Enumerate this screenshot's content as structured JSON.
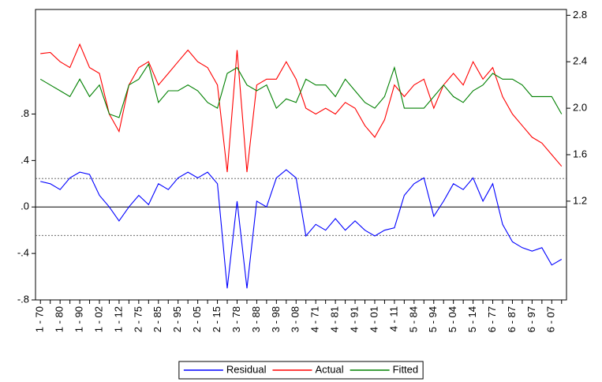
{
  "chart_data": {
    "type": "line",
    "categories": [
      "1 - 70",
      null,
      "1 - 80",
      null,
      "1 - 90",
      null,
      "1 - 02",
      null,
      "1 - 12",
      null,
      "2 - 75",
      null,
      "2 - 85",
      null,
      "2 - 95",
      null,
      "2 - 05",
      null,
      "2 - 15",
      null,
      "3 - 78",
      null,
      "3 - 88",
      null,
      "3 - 98",
      null,
      "3 - 08",
      null,
      "4 - 71",
      null,
      "4 - 81",
      null,
      "4 - 91",
      null,
      "4 - 01",
      null,
      "4 - 11",
      null,
      "5 - 84",
      null,
      "5 - 94",
      null,
      "5 - 04",
      null,
      "5 - 14",
      null,
      "6 - 77",
      null,
      "6 - 87",
      null,
      "6 - 97",
      null,
      "6 - 07",
      null
    ],
    "series": [
      {
        "name": "Residual",
        "color": "#0000ff",
        "axis": "y",
        "values": [
          0.22,
          0.2,
          0.15,
          0.25,
          0.3,
          0.28,
          0.1,
          0.0,
          -0.12,
          0.0,
          0.1,
          0.02,
          0.2,
          0.15,
          0.25,
          0.3,
          0.25,
          0.3,
          0.2,
          -0.7,
          0.05,
          -0.7,
          0.05,
          0.0,
          0.25,
          0.32,
          0.25,
          -0.25,
          -0.15,
          -0.2,
          -0.1,
          -0.2,
          -0.12,
          -0.2,
          -0.25,
          -0.2,
          -0.18,
          0.1,
          0.2,
          0.25,
          -0.08,
          0.05,
          0.2,
          0.15,
          0.25,
          0.05,
          0.2,
          -0.15,
          -0.3,
          -0.35,
          -0.38,
          -0.35,
          -0.5,
          -0.45
        ]
      },
      {
        "name": "Actual",
        "color": "#ff0000",
        "axis": "y2",
        "values": [
          2.47,
          2.48,
          2.4,
          2.35,
          2.55,
          2.35,
          2.3,
          1.95,
          1.8,
          2.2,
          2.35,
          2.4,
          2.2,
          2.3,
          2.4,
          2.5,
          2.4,
          2.35,
          2.2,
          1.45,
          2.5,
          1.45,
          2.2,
          2.25,
          2.25,
          2.4,
          2.25,
          2.0,
          1.95,
          2.0,
          1.95,
          2.05,
          2.0,
          1.85,
          1.75,
          1.9,
          2.2,
          2.1,
          2.2,
          2.25,
          2.0,
          2.2,
          2.3,
          2.2,
          2.4,
          2.25,
          2.35,
          2.1,
          1.95,
          1.85,
          1.75,
          1.7,
          1.6,
          1.5
        ]
      },
      {
        "name": "Fitted",
        "color": "#008000",
        "axis": "y2",
        "values": [
          2.25,
          2.2,
          2.15,
          2.1,
          2.25,
          2.1,
          2.2,
          1.95,
          1.92,
          2.2,
          2.25,
          2.38,
          2.05,
          2.15,
          2.15,
          2.2,
          2.15,
          2.05,
          2.0,
          2.3,
          2.35,
          2.2,
          2.15,
          2.2,
          2.0,
          2.08,
          2.05,
          2.25,
          2.2,
          2.2,
          2.1,
          2.25,
          2.15,
          2.05,
          2.0,
          2.1,
          2.35,
          2.0,
          2.0,
          2.0,
          2.1,
          2.2,
          2.1,
          2.05,
          2.15,
          2.2,
          2.3,
          2.25,
          2.25,
          2.2,
          2.1,
          2.1,
          2.1,
          1.95
        ]
      }
    ],
    "ylim": [
      -0.8,
      1.7
    ],
    "yticks": [
      {
        "value": -0.8,
        "label": "-.8"
      },
      {
        "value": -0.4,
        "label": "-.4"
      },
      {
        "value": 0,
        "label": ".0"
      },
      {
        "value": 0.4,
        "label": ".4"
      },
      {
        "value": 0.8,
        "label": ".8"
      }
    ],
    "y2lim": [
      0.35,
      2.85
    ],
    "y2ticks": [
      1.2,
      1.6,
      {
        "value": 2,
        "label": "2.0"
      },
      2.4,
      2.8
    ],
    "reference_lines": [
      0.245,
      -0.245
    ],
    "zero_line": true,
    "legend": "bottom"
  }
}
